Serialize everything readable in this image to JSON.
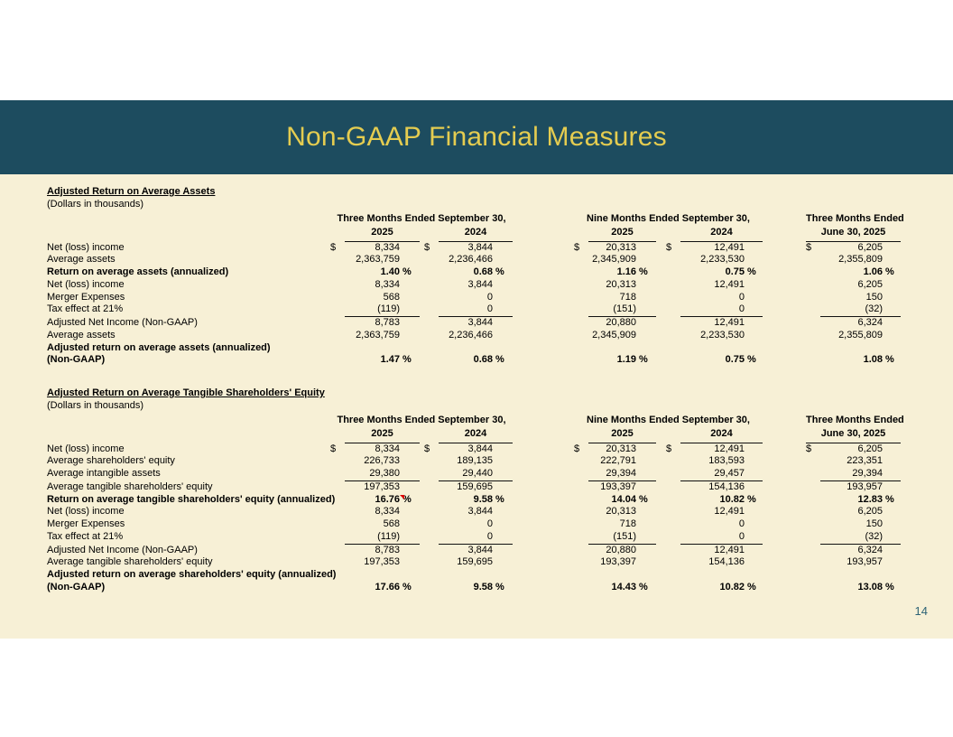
{
  "slide": {
    "title": "Non-GAAP Financial Measures",
    "page_number": "14"
  },
  "colors": {
    "band": "#1d4c5f",
    "title_text": "#e4cc50",
    "background": "#f7f0d6",
    "page_number": "#2d6376",
    "comment_flag": "#dd0000"
  },
  "tables": [
    {
      "title": "Adjusted Return on Average Assets",
      "subtitle": "(Dollars in thousands)",
      "col_groups": [
        {
          "label": "Three Months Ended September 30,",
          "years": [
            "2025",
            "2024"
          ]
        },
        {
          "label": "Nine Months Ended September 30,",
          "years": [
            "2025",
            "2024"
          ]
        },
        {
          "label": "Three Months Ended",
          "years": [
            "June 30, 2025"
          ]
        }
      ],
      "rows": [
        {
          "label": "Net (loss) income",
          "dollar": true,
          "values": [
            "8,334",
            "3,844",
            "20,313",
            "12,491",
            "6,205"
          ]
        },
        {
          "label": "Average assets",
          "values": [
            "2,363,759",
            "2,236,466",
            "2,345,909",
            "2,233,530",
            "2,355,809"
          ]
        },
        {
          "label": "Return on average assets (annualized)",
          "bold": true,
          "pct": true,
          "values": [
            "1.40",
            "0.68",
            "1.16",
            "0.75",
            "1.06"
          ]
        },
        {
          "label": "Net (loss) income",
          "values": [
            "8,334",
            "3,844",
            "20,313",
            "12,491",
            "6,205"
          ]
        },
        {
          "label": "Merger Expenses",
          "values": [
            "568",
            "0",
            "718",
            "0",
            "150"
          ]
        },
        {
          "label": "Tax effect at 21%",
          "rule": true,
          "values": [
            "(119)",
            "0",
            "(151)",
            "0",
            "(32)"
          ]
        },
        {
          "label": "Adjusted Net Income (Non-GAAP)",
          "values": [
            "8,783",
            "3,844",
            "20,880",
            "12,491",
            "6,324"
          ]
        },
        {
          "label": "Average assets",
          "values": [
            "2,363,759",
            "2,236,466",
            "2,345,909",
            "2,233,530",
            "2,355,809"
          ]
        },
        {
          "label": "Adjusted return on average assets (annualized)",
          "bold": true,
          "values": [
            "",
            "",
            "",
            "",
            ""
          ]
        },
        {
          "label": "(Non-GAAP)",
          "bold": true,
          "pct": true,
          "values": [
            "1.47",
            "0.68",
            "1.19",
            "0.75",
            "1.08"
          ]
        }
      ]
    },
    {
      "title": "Adjusted Return on Average Tangible Shareholders' Equity",
      "subtitle": "(Dollars in thousands)",
      "col_groups": [
        {
          "label": "Three Months Ended September 30,",
          "years": [
            "2025",
            "2024"
          ]
        },
        {
          "label": "Nine Months Ended September 30,",
          "years": [
            "2025",
            "2024"
          ]
        },
        {
          "label": "Three Months Ended",
          "years": [
            "June 30, 2025"
          ]
        }
      ],
      "rows": [
        {
          "label": "Net (loss) income",
          "dollar": true,
          "values": [
            "8,334",
            "3,844",
            "20,313",
            "12,491",
            "6,205"
          ]
        },
        {
          "label": "Average shareholders' equity",
          "values": [
            "226,733",
            "189,135",
            "222,791",
            "183,593",
            "223,351"
          ]
        },
        {
          "label": "Average intangible assets",
          "rule": true,
          "values": [
            "29,380",
            "29,440",
            "29,394",
            "29,457",
            "29,394"
          ]
        },
        {
          "label": "Average tangible shareholders' equity",
          "values": [
            "197,353",
            "159,695",
            "193,397",
            "154,136",
            "193,957"
          ]
        },
        {
          "label": "Return on average tangible shareholders' equity (annualized)",
          "bold": true,
          "pct": true,
          "flags": [
            0
          ],
          "values": [
            "16.76",
            "9.58",
            "14.04",
            "10.82",
            "12.83"
          ]
        },
        {
          "label": "Net (loss) income",
          "values": [
            "8,334",
            "3,844",
            "20,313",
            "12,491",
            "6,205"
          ]
        },
        {
          "label": "Merger Expenses",
          "values": [
            "568",
            "0",
            "718",
            "0",
            "150"
          ]
        },
        {
          "label": "Tax effect at 21%",
          "rule": true,
          "values": [
            "(119)",
            "0",
            "(151)",
            "0",
            "(32)"
          ]
        },
        {
          "label": "Adjusted Net Income (Non-GAAP)",
          "values": [
            "8,783",
            "3,844",
            "20,880",
            "12,491",
            "6,324"
          ]
        },
        {
          "label": "Average tangible shareholders' equity",
          "values": [
            "197,353",
            "159,695",
            "193,397",
            "154,136",
            "193,957"
          ]
        },
        {
          "label": "Adjusted return on average shareholders' equity (annualized)",
          "bold": true,
          "values": [
            "",
            "",
            "",
            "",
            ""
          ]
        },
        {
          "label": "(Non-GAAP)",
          "bold": true,
          "pct": true,
          "values": [
            "17.66",
            "9.58",
            "14.43",
            "10.82",
            "13.08"
          ]
        }
      ]
    }
  ]
}
